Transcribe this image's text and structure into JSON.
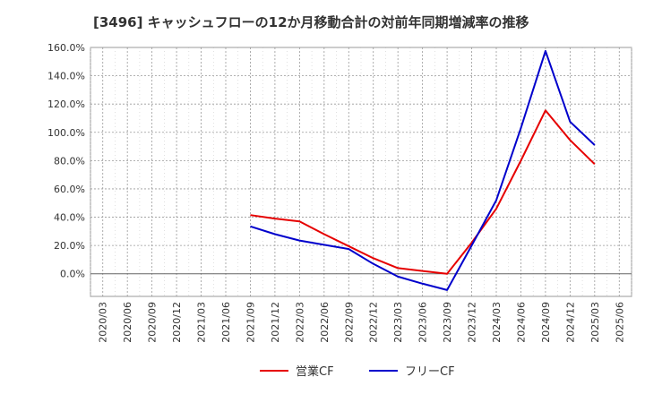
{
  "chart_data": {
    "type": "line",
    "title": "[3496]  キャッシュフローの12か月移動合計の対前年同期増減率の推移",
    "xlabel": "",
    "ylabel": "",
    "x": [
      "2020/03",
      "2020/06",
      "2020/09",
      "2020/12",
      "2021/03",
      "2021/06",
      "2021/09",
      "2021/12",
      "2022/03",
      "2022/06",
      "2022/09",
      "2022/12",
      "2023/03",
      "2023/06",
      "2023/09",
      "2023/12",
      "2024/03",
      "2024/06",
      "2024/09",
      "2024/12",
      "2025/03",
      "2025/06"
    ],
    "y_ticks": [
      "0.0%",
      "20.0%",
      "40.0%",
      "60.0%",
      "80.0%",
      "100.0%",
      "120.0%",
      "140.0%",
      "160.0%"
    ],
    "ylim": [
      -16,
      160
    ],
    "grid": true,
    "legend_position": "bottom",
    "series": [
      {
        "name": "営業CF",
        "color": "#e60000",
        "values": [
          null,
          null,
          null,
          null,
          null,
          null,
          41.5,
          39,
          37,
          28,
          19.5,
          11,
          4,
          2,
          0,
          22,
          46,
          80,
          115.5,
          94.5,
          77.5,
          null
        ]
      },
      {
        "name": "フリーCF",
        "color": "#0000cc",
        "values": [
          null,
          null,
          null,
          null,
          null,
          null,
          33.5,
          28,
          23.5,
          20.5,
          17.5,
          7,
          -2,
          -7,
          -11.5,
          20,
          52,
          103,
          157.5,
          107.5,
          91,
          null
        ]
      }
    ]
  }
}
